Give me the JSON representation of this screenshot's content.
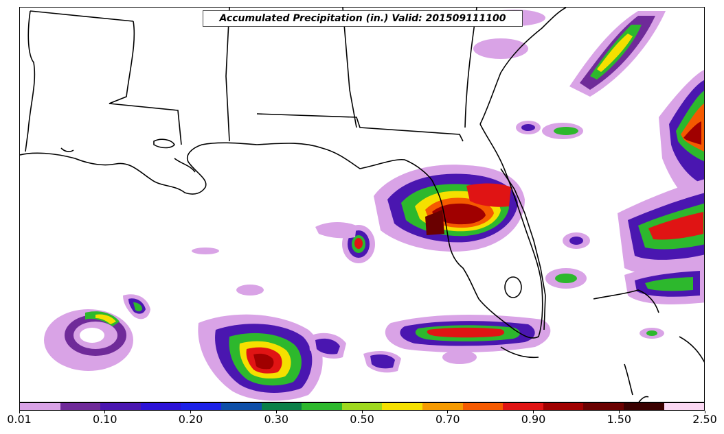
{
  "map": {
    "title": "Accumulated Precipitation (in.) Valid: 201509111100",
    "colorbar": {
      "colors": [
        "#d9a3e6",
        "#6f2a99",
        "#4a16b0",
        "#2c12d6",
        "#1c22e8",
        "#0d4fa8",
        "#0a8048",
        "#2db82d",
        "#9ed81e",
        "#f5e000",
        "#f59a00",
        "#f55a00",
        "#e01414",
        "#a00000",
        "#6a0000",
        "#3a0000",
        "#fbd8f3"
      ],
      "tick_labels": [
        "0.01",
        "0.10",
        "0.20",
        "0.30",
        "0.50",
        "0.70",
        "0.90",
        "1.50",
        "2.50"
      ]
    }
  }
}
